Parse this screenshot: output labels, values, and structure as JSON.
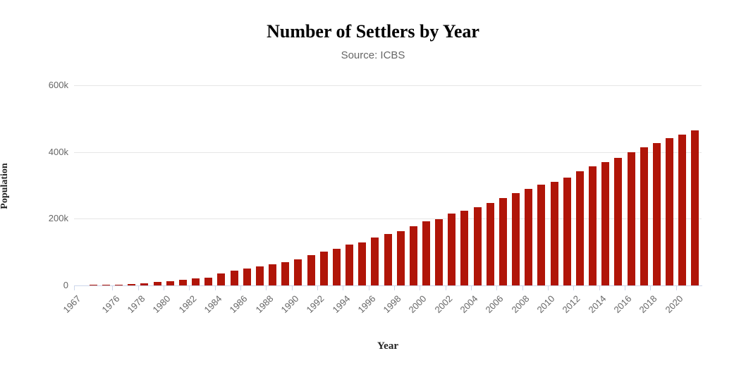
{
  "title": "Number of Settlers by Year",
  "subtitle": "Source: ICBS",
  "colors": {
    "bar": "#b01508",
    "gridline": "#e6e6e6",
    "axis_line": "#ccd6eb",
    "tick_label": "#666666",
    "title": "#222222"
  },
  "chart_data": {
    "type": "bar",
    "title": "Number of Settlers by Year",
    "subtitle": "Source: ICBS",
    "xlabel": "Year",
    "ylabel": "Population",
    "ylim": [
      0,
      600000
    ],
    "grid": true,
    "legend": false,
    "bar_color": "#b01508",
    "yticks": [
      {
        "value": 0,
        "label": "0"
      },
      {
        "value": 200000,
        "label": "200k"
      },
      {
        "value": 400000,
        "label": "400k"
      },
      {
        "value": 600000,
        "label": "600k"
      }
    ],
    "categories": [
      1967,
      1974,
      1975,
      1976,
      1977,
      1978,
      1979,
      1980,
      1981,
      1982,
      1983,
      1984,
      1985,
      1986,
      1987,
      1988,
      1989,
      1990,
      1991,
      1992,
      1993,
      1994,
      1995,
      1996,
      1997,
      1998,
      1999,
      2000,
      2001,
      2002,
      2003,
      2004,
      2005,
      2006,
      2007,
      2008,
      2009,
      2010,
      2011,
      2012,
      2013,
      2014,
      2015,
      2016,
      2017,
      2018,
      2019,
      2020,
      2021
    ],
    "values": [
      0,
      2000,
      2600,
      3176,
      4400,
      7400,
      10000,
      12424,
      16119,
      21000,
      22800,
      35300,
      44100,
      51100,
      57900,
      63600,
      69800,
      78600,
      90300,
      100500,
      110900,
      122700,
      127900,
      142700,
      154400,
      163300,
      177411,
      192976,
      198535,
      214722,
      224669,
      234487,
      247514,
      261879,
      276462,
      290400,
      301200,
      311100,
      324000,
      341400,
      356500,
      370700,
      382916,
      399300,
      413400,
      427800,
      441600,
      451700,
      465400
    ],
    "labeled_categories": [
      "1967",
      "1976",
      "1978",
      "1980",
      "1982",
      "1984",
      "1986",
      "1988",
      "1990",
      "1992",
      "1994",
      "1996",
      "1998",
      "2000",
      "2002",
      "2004",
      "2006",
      "2008",
      "2010",
      "2012",
      "2014",
      "2016",
      "2018",
      "2020"
    ]
  }
}
